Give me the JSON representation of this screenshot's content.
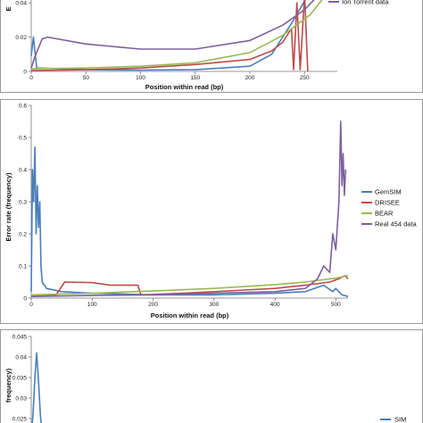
{
  "chart_data": [
    {
      "type": "line",
      "xlabel": "Position within read (bp)",
      "ylabel": "E",
      "xlim": [
        0,
        280
      ],
      "ylim": [
        0,
        0.05
      ],
      "x_ticks": [
        0,
        50,
        100,
        150,
        200,
        250
      ],
      "y_ticks": [
        0,
        0.02,
        0.04
      ],
      "y_tick_labels": [
        "0",
        "0.02",
        "0.04"
      ],
      "grid": false,
      "legend": "top-right",
      "series": [
        {
          "name": "",
          "color": "#4a7ebb",
          "points": [
            [
              0,
              0.009
            ],
            [
              2,
              0.02
            ],
            [
              5,
              0.002
            ],
            [
              50,
              0.001
            ],
            [
              100,
              0.0008
            ],
            [
              150,
              0.001
            ],
            [
              200,
              0.003
            ],
            [
              220,
              0.01
            ],
            [
              240,
              0.03
            ],
            [
              258,
              0.05
            ]
          ]
        },
        {
          "name": "",
          "color": "#be4b48",
          "points": [
            [
              0,
              0.0005
            ],
            [
              50,
              0.001
            ],
            [
              100,
              0.002
            ],
            [
              150,
              0.004
            ],
            [
              200,
              0.007
            ],
            [
              220,
              0.012
            ],
            [
              230,
              0.017
            ],
            [
              238,
              0.025
            ],
            [
              240,
              0.001
            ],
            [
              243,
              0.04
            ],
            [
              246,
              0.001
            ],
            [
              250,
              0.045
            ],
            [
              253,
              0.0
            ]
          ]
        },
        {
          "name": "",
          "color": "#98b954",
          "points": [
            [
              0,
              0.0015
            ],
            [
              50,
              0.002
            ],
            [
              100,
              0.003
            ],
            [
              150,
              0.005
            ],
            [
              200,
              0.011
            ],
            [
              230,
              0.021
            ],
            [
              255,
              0.033
            ],
            [
              270,
              0.045
            ]
          ]
        },
        {
          "name": "Ion Torrent data",
          "color": "#7d60a0",
          "points": [
            [
              0,
              0.002
            ],
            [
              3,
              0.008
            ],
            [
              10,
              0.019
            ],
            [
              15,
              0.02
            ],
            [
              50,
              0.016
            ],
            [
              100,
              0.013
            ],
            [
              150,
              0.013
            ],
            [
              200,
              0.018
            ],
            [
              230,
              0.027
            ],
            [
              250,
              0.036
            ],
            [
              265,
              0.046
            ],
            [
              275,
              0.05
            ]
          ]
        }
      ]
    },
    {
      "type": "line",
      "xlabel": "Position within read (bp)",
      "ylabel": "Error rate (frequency)",
      "xlim": [
        0,
        520
      ],
      "ylim": [
        0,
        0.6
      ],
      "x_ticks": [
        0,
        100,
        200,
        300,
        400,
        500
      ],
      "y_ticks": [
        0,
        0.1,
        0.2,
        0.3,
        0.4,
        0.5,
        0.6
      ],
      "y_tick_labels": [
        "0",
        "0.1",
        "0.2",
        "0.3",
        "0.4",
        "0.5",
        "0.6"
      ],
      "grid": false,
      "legend": "right",
      "series": [
        {
          "name": "GemSIM",
          "color": "#4a7ebb",
          "points": [
            [
              0,
              0.02
            ],
            [
              2,
              0.4
            ],
            [
              4,
              0.3
            ],
            [
              6,
              0.47
            ],
            [
              8,
              0.2
            ],
            [
              10,
              0.35
            ],
            [
              12,
              0.22
            ],
            [
              14,
              0.3
            ],
            [
              16,
              0.1
            ],
            [
              18,
              0.05
            ],
            [
              25,
              0.03
            ],
            [
              50,
              0.02
            ],
            [
              100,
              0.015
            ],
            [
              200,
              0.01
            ],
            [
              300,
              0.01
            ],
            [
              400,
              0.015
            ],
            [
              450,
              0.02
            ],
            [
              480,
              0.04
            ],
            [
              495,
              0.02
            ],
            [
              500,
              0.03
            ],
            [
              510,
              0.01
            ],
            [
              520,
              0.005
            ]
          ]
        },
        {
          "name": "DRISEE",
          "color": "#be4b48",
          "points": [
            [
              0,
              0.005
            ],
            [
              40,
              0.008
            ],
            [
              55,
              0.05
            ],
            [
              100,
              0.048
            ],
            [
              130,
              0.04
            ],
            [
              175,
              0.04
            ],
            [
              180,
              0.01
            ],
            [
              250,
              0.015
            ],
            [
              300,
              0.02
            ],
            [
              350,
              0.025
            ],
            [
              400,
              0.03
            ],
            [
              450,
              0.04
            ],
            [
              490,
              0.05
            ],
            [
              505,
              0.06
            ],
            [
              515,
              0.07
            ],
            [
              520,
              0.06
            ]
          ]
        },
        {
          "name": "BEAR",
          "color": "#98b954",
          "points": [
            [
              0,
              0.01
            ],
            [
              100,
              0.015
            ],
            [
              200,
              0.022
            ],
            [
              300,
              0.03
            ],
            [
              400,
              0.042
            ],
            [
              450,
              0.05
            ],
            [
              500,
              0.062
            ],
            [
              520,
              0.07
            ]
          ]
        },
        {
          "name": "Real 454 data",
          "color": "#7d60a0",
          "points": [
            [
              0,
              0.005
            ],
            [
              100,
              0.008
            ],
            [
              200,
              0.01
            ],
            [
              300,
              0.015
            ],
            [
              400,
              0.02
            ],
            [
              450,
              0.03
            ],
            [
              470,
              0.06
            ],
            [
              480,
              0.1
            ],
            [
              490,
              0.08
            ],
            [
              495,
              0.2
            ],
            [
              500,
              0.15
            ],
            [
              505,
              0.3
            ],
            [
              508,
              0.55
            ],
            [
              510,
              0.35
            ],
            [
              512,
              0.45
            ],
            [
              514,
              0.32
            ],
            [
              516,
              0.4
            ]
          ]
        }
      ]
    },
    {
      "type": "line",
      "xlabel": "",
      "ylabel": "frequency)",
      "xlim": [
        0,
        520
      ],
      "ylim": [
        0.02,
        0.045
      ],
      "y_ticks": [
        0.025,
        0.03,
        0.035,
        0.04,
        0.045
      ],
      "y_tick_labels": [
        "0.025",
        "0.03",
        "0.035",
        "0.04",
        "0.045"
      ],
      "grid": false,
      "legend": "right",
      "series": [
        {
          "name": "",
          "color": "#4a7ebb",
          "points": [
            [
              0,
              0.021
            ],
            [
              3,
              0.026
            ],
            [
              6,
              0.035
            ],
            [
              9,
              0.041
            ],
            [
              12,
              0.034
            ],
            [
              15,
              0.026
            ],
            [
              18,
              0.021
            ]
          ]
        }
      ],
      "legend_partial_text": "SIM"
    }
  ]
}
